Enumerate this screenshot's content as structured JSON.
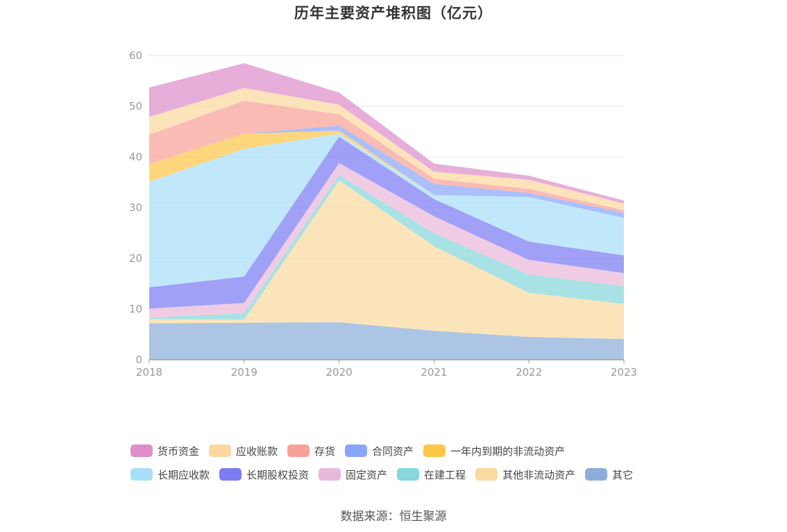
{
  "chart_data": {
    "type": "area",
    "stacked": true,
    "title": "历年主要资产堆积图（亿元）",
    "x": [
      "2018",
      "2019",
      "2020",
      "2021",
      "2022",
      "2023"
    ],
    "ylim": [
      0,
      60
    ],
    "yticks": [
      0,
      10,
      20,
      30,
      40,
      50,
      60
    ],
    "grid": true,
    "legend_position": "bottom",
    "series": [
      {
        "name": "其它",
        "color": "#8eaed9",
        "values": [
          7.2,
          7.3,
          7.4,
          5.7,
          4.5,
          4.1
        ]
      },
      {
        "name": "其他非流动资产",
        "color": "#fbd9a0",
        "values": [
          0.8,
          0.6,
          28.0,
          16.7,
          8.7,
          6.9
        ]
      },
      {
        "name": "在建工程",
        "color": "#87d7da",
        "values": [
          0.3,
          1.3,
          1.0,
          2.6,
          3.6,
          3.5
        ]
      },
      {
        "name": "固定资产",
        "color": "#eab8da",
        "values": [
          1.8,
          2.0,
          2.4,
          3.3,
          2.9,
          2.6
        ]
      },
      {
        "name": "长期股权投资",
        "color": "#7b7cf2",
        "values": [
          4.2,
          5.2,
          5.2,
          3.4,
          3.6,
          3.5
        ]
      },
      {
        "name": "长期应收款",
        "color": "#a8dff8",
        "values": [
          20.8,
          25.2,
          0.6,
          0.8,
          8.8,
          7.4
        ]
      },
      {
        "name": "一年内到期的非流动资产",
        "color": "#fdc649",
        "values": [
          3.5,
          3.0,
          0.6,
          0.0,
          0.0,
          0.0
        ]
      },
      {
        "name": "合同资产",
        "color": "#8aa6fb",
        "values": [
          0.0,
          0.0,
          1.0,
          2.2,
          0.8,
          1.0
        ]
      },
      {
        "name": "存货",
        "color": "#f8a199",
        "values": [
          5.8,
          6.5,
          2.2,
          1.0,
          0.8,
          0.5
        ]
      },
      {
        "name": "应收账款",
        "color": "#fcd8a0",
        "values": [
          3.5,
          2.5,
          1.9,
          1.4,
          1.8,
          1.3
        ]
      },
      {
        "name": "货币资金",
        "color": "#de8fca",
        "values": [
          5.8,
          4.9,
          2.4,
          1.6,
          0.8,
          0.6
        ]
      }
    ],
    "legend_rows": [
      [
        "货币资金",
        "应收账款",
        "存货",
        "合同资产",
        "一年内到期的非流动资产"
      ],
      [
        "长期应收款",
        "长期股权投资",
        "固定资产",
        "在建工程",
        "其他非流动资产",
        "其它"
      ]
    ]
  },
  "source_text": "数据来源：恒生聚源"
}
